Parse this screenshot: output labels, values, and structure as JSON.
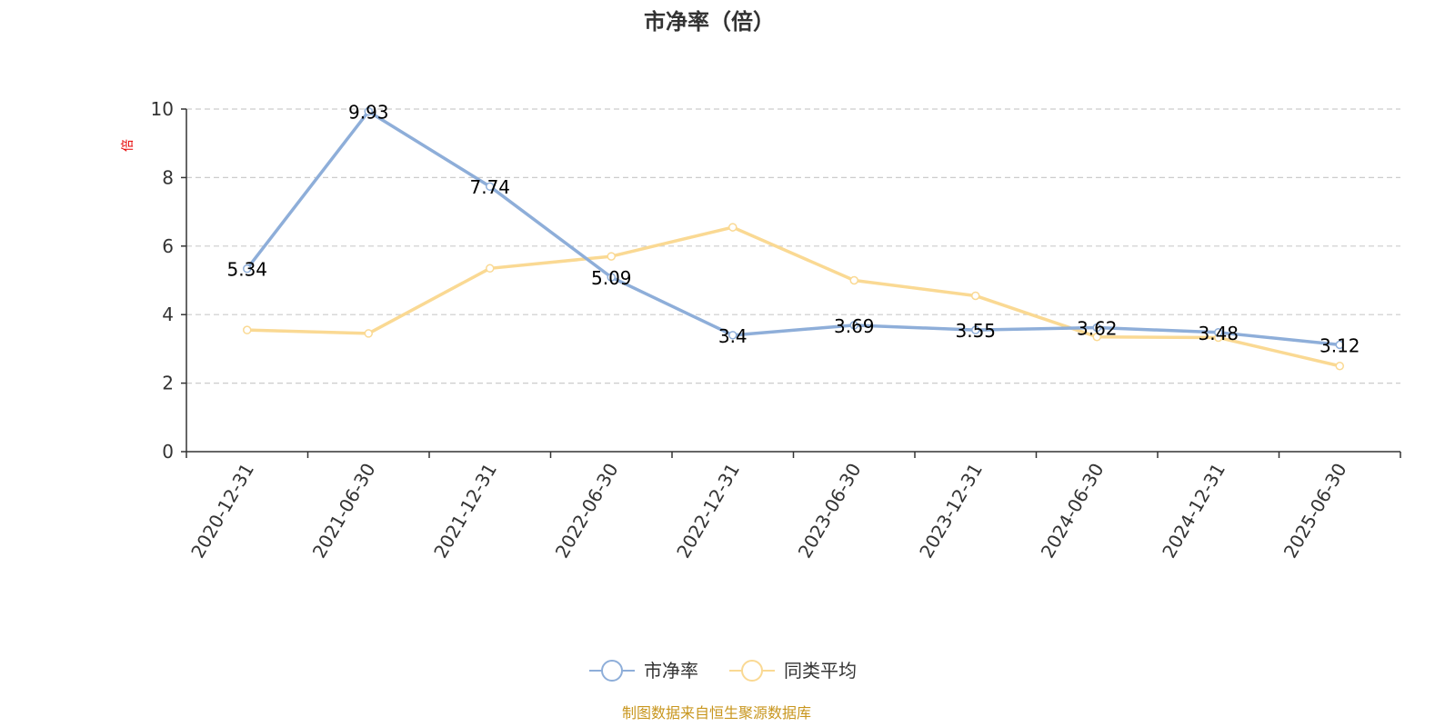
{
  "chart_data": {
    "type": "line",
    "title": "市净率（倍）",
    "ylabel": "倍",
    "xlabel": "",
    "categories": [
      "2020-12-31",
      "2021-06-30",
      "2021-12-31",
      "2022-06-30",
      "2022-12-31",
      "2023-06-30",
      "2023-12-31",
      "2024-06-30",
      "2024-12-31",
      "2025-06-30"
    ],
    "series": [
      {
        "name": "市净率",
        "color": "#8eaed9",
        "values": [
          5.34,
          9.93,
          7.74,
          5.09,
          3.4,
          3.69,
          3.55,
          3.62,
          3.48,
          3.12
        ],
        "labels": [
          "5.34",
          "9.93",
          "7.74",
          "5.09",
          "3.4",
          "3.69",
          "3.55",
          "3.62",
          "3.48",
          "3.12"
        ]
      },
      {
        "name": "同类平均",
        "color": "#fad993",
        "values": [
          3.55,
          3.45,
          5.35,
          5.7,
          6.55,
          5.0,
          4.55,
          3.35,
          3.33,
          2.5
        ]
      }
    ],
    "ylim": [
      0,
      10
    ],
    "yticks": [
      "0",
      "2",
      "4",
      "6",
      "8",
      "10"
    ],
    "grid": "dashed horizontal",
    "legend": "bottom-center"
  },
  "source_note": "制图数据来自恒生聚源数据库"
}
